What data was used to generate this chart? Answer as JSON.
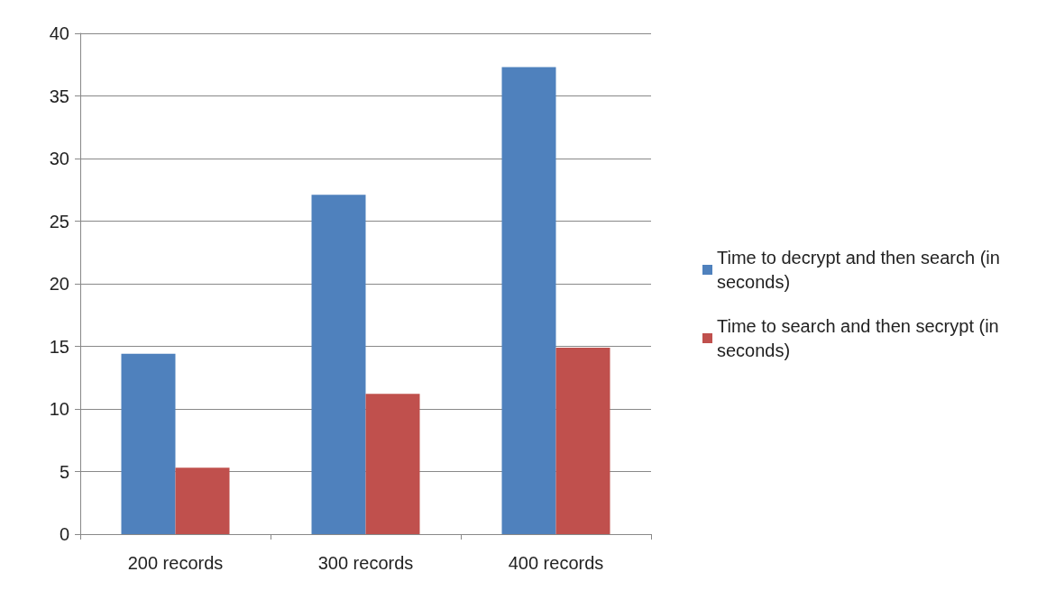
{
  "chart_data": {
    "type": "bar",
    "categories": [
      "200 records",
      "300 records",
      "400 records"
    ],
    "series": [
      {
        "name": "Time to decrypt and then search (in seconds)",
        "color": "#4f81bd",
        "values": [
          14.4,
          27.1,
          37.3
        ]
      },
      {
        "name": "Time to search and then secrypt (in seconds)",
        "color": "#c0504d",
        "values": [
          5.3,
          11.2,
          14.9
        ]
      }
    ],
    "ylim": [
      0,
      40
    ],
    "yticks": [
      0,
      5,
      10,
      15,
      20,
      25,
      30,
      35,
      40
    ],
    "grid": "y",
    "legend": "right"
  }
}
